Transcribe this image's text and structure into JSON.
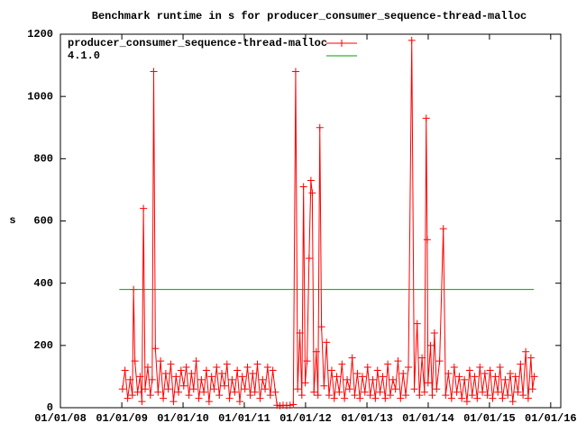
{
  "chart_data": {
    "type": "line",
    "title": "Benchmark runtime in s for producer_consumer_sequence-thread-malloc",
    "y_label": "s",
    "xlim": [
      "2008-01-01",
      "2016-03-01"
    ],
    "xticks": [
      {
        "value": "2008-01-01",
        "label": "01/01/08"
      },
      {
        "value": "2009-01-01",
        "label": "01/01/09"
      },
      {
        "value": "2010-01-01",
        "label": "01/01/10"
      },
      {
        "value": "2011-01-01",
        "label": "01/01/11"
      },
      {
        "value": "2012-01-01",
        "label": "01/01/12"
      },
      {
        "value": "2013-01-01",
        "label": "01/01/13"
      },
      {
        "value": "2014-01-01",
        "label": "01/01/14"
      },
      {
        "value": "2015-01-01",
        "label": "01/01/15"
      },
      {
        "value": "2016-01-01",
        "label": "01/01/16"
      }
    ],
    "ylim": [
      0,
      1200
    ],
    "yticks": [
      0,
      200,
      400,
      600,
      800,
      1000,
      1200
    ],
    "legend": "top-left",
    "series": [
      {
        "name": "producer_consumer_sequence-thread-malloc",
        "color": "#ff0000",
        "markers": true,
        "x": [
          "2009-01-05",
          "2009-01-20",
          "2009-02-05",
          "2009-02-20",
          "2009-03-05",
          "2009-03-12",
          "2009-03-20",
          "2009-04-05",
          "2009-04-20",
          "2009-05-01",
          "2009-05-10",
          "2009-05-20",
          "2009-06-05",
          "2009-06-20",
          "2009-07-01",
          "2009-07-10",
          "2009-07-20",
          "2009-08-05",
          "2009-08-20",
          "2009-09-05",
          "2009-09-20",
          "2009-10-05",
          "2009-10-20",
          "2009-11-05",
          "2009-11-20",
          "2009-12-05",
          "2009-12-20",
          "2010-01-05",
          "2010-01-20",
          "2010-02-05",
          "2010-02-20",
          "2010-03-05",
          "2010-03-20",
          "2010-04-05",
          "2010-04-20",
          "2010-05-05",
          "2010-05-20",
          "2010-06-05",
          "2010-06-20",
          "2010-07-05",
          "2010-07-20",
          "2010-08-05",
          "2010-08-20",
          "2010-09-05",
          "2010-09-20",
          "2010-10-05",
          "2010-10-20",
          "2010-11-05",
          "2010-11-20",
          "2010-12-05",
          "2010-12-20",
          "2011-01-05",
          "2011-01-20",
          "2011-02-05",
          "2011-02-20",
          "2011-03-05",
          "2011-03-20",
          "2011-04-05",
          "2011-04-20",
          "2011-05-05",
          "2011-05-20",
          "2011-06-05",
          "2011-06-20",
          "2011-07-05",
          "2011-07-15",
          "2011-08-01",
          "2011-08-20",
          "2011-09-10",
          "2011-10-01",
          "2011-10-20",
          "2011-11-03",
          "2011-11-15",
          "2011-11-28",
          "2011-12-10",
          "2011-12-20",
          "2011-12-30",
          "2012-01-10",
          "2012-01-22",
          "2012-02-02",
          "2012-02-10",
          "2012-02-20",
          "2012-03-05",
          "2012-03-15",
          "2012-03-26",
          "2012-04-05",
          "2012-04-20",
          "2012-05-05",
          "2012-05-20",
          "2012-06-05",
          "2012-06-20",
          "2012-07-05",
          "2012-07-20",
          "2012-08-05",
          "2012-08-20",
          "2012-09-05",
          "2012-09-20",
          "2012-10-05",
          "2012-10-20",
          "2012-11-05",
          "2012-11-20",
          "2012-12-05",
          "2012-12-20",
          "2013-01-05",
          "2013-01-20",
          "2013-02-05",
          "2013-02-20",
          "2013-03-05",
          "2013-03-20",
          "2013-04-05",
          "2013-04-20",
          "2013-05-05",
          "2013-05-20",
          "2013-06-05",
          "2013-06-20",
          "2013-07-05",
          "2013-07-20",
          "2013-08-05",
          "2013-08-20",
          "2013-09-05",
          "2013-09-25",
          "2013-10-10",
          "2013-10-27",
          "2013-11-10",
          "2013-11-25",
          "2013-12-10",
          "2013-12-20",
          "2013-12-26",
          "2013-12-31",
          "2014-01-15",
          "2014-01-25",
          "2014-02-07",
          "2014-02-20",
          "2014-03-10",
          "2014-04-01",
          "2014-04-15",
          "2014-05-01",
          "2014-05-20",
          "2014-06-05",
          "2014-06-20",
          "2014-07-05",
          "2014-07-20",
          "2014-08-05",
          "2014-08-20",
          "2014-09-05",
          "2014-09-20",
          "2014-10-05",
          "2014-10-20",
          "2014-11-05",
          "2014-11-20",
          "2014-12-05",
          "2014-12-20",
          "2015-01-05",
          "2015-01-20",
          "2015-02-05",
          "2015-02-20",
          "2015-03-05",
          "2015-03-20",
          "2015-04-05",
          "2015-04-20",
          "2015-05-05",
          "2015-05-20",
          "2015-06-05",
          "2015-06-20",
          "2015-07-05",
          "2015-07-20",
          "2015-08-05",
          "2015-08-20",
          "2015-09-05",
          "2015-09-15",
          "2015-09-25"
        ],
        "values": [
          60,
          120,
          30,
          90,
          40,
          380,
          150,
          50,
          100,
          20,
          640,
          60,
          130,
          40,
          90,
          1080,
          190,
          50,
          150,
          30,
          110,
          60,
          140,
          20,
          100,
          50,
          120,
          70,
          130,
          40,
          110,
          60,
          150,
          30,
          90,
          50,
          120,
          20,
          100,
          60,
          130,
          40,
          110,
          70,
          140,
          30,
          90,
          50,
          120,
          20,
          100,
          60,
          130,
          40,
          110,
          50,
          140,
          30,
          90,
          60,
          130,
          40,
          120,
          50,
          8,
          6,
          8,
          7,
          8,
          10,
          1080,
          60,
          240,
          40,
          710,
          80,
          150,
          480,
          730,
          690,
          50,
          180,
          40,
          900,
          260,
          70,
          210,
          40,
          120,
          30,
          100,
          50,
          140,
          30,
          90,
          60,
          160,
          40,
          110,
          30,
          100,
          50,
          130,
          40,
          90,
          30,
          120,
          50,
          100,
          30,
          140,
          40,
          90,
          60,
          150,
          30,
          110,
          40,
          130,
          1180,
          60,
          270,
          40,
          160,
          50,
          930,
          540,
          80,
          200,
          40,
          240,
          60,
          150,
          575,
          40,
          110,
          30,
          130,
          50,
          100,
          30,
          90,
          20,
          120,
          40,
          100,
          30,
          130,
          50,
          110,
          40,
          120,
          30,
          100,
          50,
          130,
          30,
          90,
          40,
          110,
          20,
          100,
          50,
          140,
          40,
          180,
          30,
          160,
          60,
          100
        ]
      },
      {
        "name": "4.1.0",
        "color": "#00a000",
        "markers": false,
        "x": [
          "2008-12-17",
          "2015-09-22"
        ],
        "values": [
          380,
          380
        ]
      }
    ]
  }
}
